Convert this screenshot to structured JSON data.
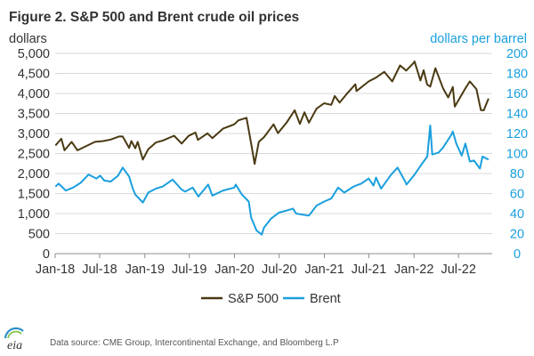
{
  "chart_data": {
    "type": "line",
    "title": "Figure 2. S&P 500 and Brent crude oil prices",
    "ylabel_left": "dollars",
    "ylabel_right": "dollars per barrel",
    "ylim_left": [
      0,
      5000
    ],
    "ylim_right": [
      0,
      200
    ],
    "yticks_left": [
      "0",
      "500",
      "1,000",
      "1,500",
      "2,000",
      "2,500",
      "3,000",
      "3,500",
      "4,000",
      "4,500",
      "5,000"
    ],
    "yticks_right": [
      "0",
      "20",
      "40",
      "60",
      "80",
      "100",
      "120",
      "140",
      "160",
      "180",
      "200"
    ],
    "xticks": [
      "Jan-18",
      "Jul-18",
      "Jan-19",
      "Jul-19",
      "Jan-20",
      "Jul-20",
      "Jan-21",
      "Jul-21",
      "Jan-22",
      "Jul-22"
    ],
    "grid": true,
    "legend_position": "bottom",
    "source": "Data source: CME Group, Intercontinental Exchange, and Bloomberg L.P",
    "logo": "eia",
    "series": [
      {
        "name": "S&P 500",
        "axis": "left",
        "color": "#4a3a12",
        "x": [
          "2018-01-02",
          "2018-01-26",
          "2018-02-08",
          "2018-03-09",
          "2018-04-02",
          "2018-05-15",
          "2018-06-12",
          "2018-07-16",
          "2018-08-15",
          "2018-09-20",
          "2018-10-03",
          "2018-10-29",
          "2018-11-07",
          "2018-11-23",
          "2018-12-03",
          "2018-12-24",
          "2019-01-15",
          "2019-02-15",
          "2019-03-15",
          "2019-04-30",
          "2019-05-31",
          "2019-06-28",
          "2019-07-26",
          "2019-08-05",
          "2019-09-13",
          "2019-10-03",
          "2019-11-15",
          "2019-12-31",
          "2020-01-17",
          "2020-02-19",
          "2020-03-09",
          "2020-03-23",
          "2020-04-09",
          "2020-04-30",
          "2020-06-08",
          "2020-06-26",
          "2020-07-31",
          "2020-09-02",
          "2020-09-23",
          "2020-10-12",
          "2020-10-30",
          "2020-11-30",
          "2020-12-31",
          "2021-01-29",
          "2021-02-12",
          "2021-03-04",
          "2021-03-31",
          "2021-05-07",
          "2021-05-12",
          "2021-06-30",
          "2021-07-30",
          "2021-09-02",
          "2021-10-04",
          "2021-11-05",
          "2021-11-30",
          "2021-12-31",
          "2022-01-03",
          "2022-01-27",
          "2022-02-09",
          "2022-02-23",
          "2022-03-08",
          "2022-03-29",
          "2022-04-29",
          "2022-05-20",
          "2022-06-08",
          "2022-06-16",
          "2022-07-29",
          "2022-08-16",
          "2022-09-12",
          "2022-09-30",
          "2022-10-12",
          "2022-10-31"
        ],
        "values": [
          2700,
          2870,
          2580,
          2790,
          2580,
          2710,
          2790,
          2810,
          2850,
          2930,
          2925,
          2640,
          2810,
          2630,
          2790,
          2350,
          2610,
          2775,
          2825,
          2945,
          2750,
          2940,
          3025,
          2840,
          3005,
          2885,
          3120,
          3230,
          3330,
          3390,
          2750,
          2240,
          2790,
          2910,
          3230,
          3010,
          3270,
          3580,
          3240,
          3530,
          3270,
          3620,
          3755,
          3715,
          3935,
          3770,
          3975,
          4230,
          4060,
          4300,
          4395,
          4540,
          4300,
          4700,
          4570,
          4770,
          4800,
          4325,
          4580,
          4225,
          4170,
          4630,
          4130,
          3900,
          4160,
          3670,
          4130,
          4300,
          4110,
          3585,
          3580,
          3870
        ]
      },
      {
        "name": "Brent",
        "axis": "right",
        "color": "#1a9fde",
        "x": [
          "2018-01-02",
          "2018-01-15",
          "2018-02-13",
          "2018-03-15",
          "2018-04-16",
          "2018-05-17",
          "2018-06-18",
          "2018-07-03",
          "2018-07-20",
          "2018-08-15",
          "2018-09-14",
          "2018-10-03",
          "2018-10-29",
          "2018-11-13",
          "2018-11-23",
          "2018-12-24",
          "2019-01-15",
          "2019-02-15",
          "2019-03-15",
          "2019-04-24",
          "2019-05-31",
          "2019-06-14",
          "2019-07-15",
          "2019-08-07",
          "2019-09-16",
          "2019-10-03",
          "2019-11-15",
          "2019-12-31",
          "2020-01-06",
          "2020-01-31",
          "2020-02-28",
          "2020-03-09",
          "2020-03-31",
          "2020-04-21",
          "2020-04-30",
          "2020-05-29",
          "2020-06-30",
          "2020-07-31",
          "2020-08-26",
          "2020-09-08",
          "2020-10-30",
          "2020-11-30",
          "2020-12-31",
          "2021-01-29",
          "2021-02-26",
          "2021-03-23",
          "2021-04-30",
          "2021-05-31",
          "2021-06-30",
          "2021-07-20",
          "2021-07-30",
          "2021-08-20",
          "2021-09-30",
          "2021-10-26",
          "2021-11-26",
          "2021-12-01",
          "2021-12-31",
          "2022-01-31",
          "2022-02-24",
          "2022-03-08",
          "2022-03-16",
          "2022-04-11",
          "2022-04-29",
          "2022-05-31",
          "2022-06-08",
          "2022-06-22",
          "2022-07-14",
          "2022-07-29",
          "2022-08-16",
          "2022-09-02",
          "2022-09-26",
          "2022-10-07",
          "2022-10-31"
        ],
        "values": [
          67,
          70,
          63,
          66,
          71,
          79,
          75,
          78,
          73,
          72,
          78,
          86,
          77,
          65,
          59,
          51,
          61,
          65,
          67,
          74,
          64,
          62,
          66,
          57,
          69,
          58,
          63,
          66,
          69,
          59,
          52,
          36,
          23,
          19,
          26,
          35,
          41,
          43,
          45,
          40,
          38,
          48,
          52,
          55,
          66,
          61,
          67,
          70,
          75,
          68,
          76,
          65,
          79,
          86,
          72,
          69,
          78,
          89,
          97,
          128,
          99,
          101,
          106,
          118,
          122,
          110,
          98,
          110,
          92,
          93,
          85,
          97,
          94
        ]
      }
    ]
  }
}
